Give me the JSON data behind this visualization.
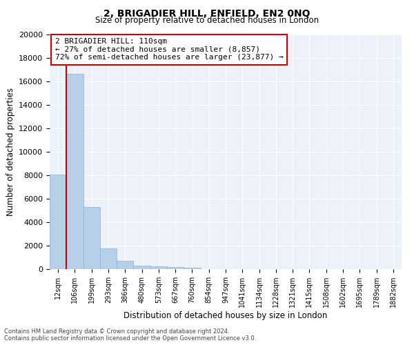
{
  "title_line1": "2, BRIGADIER HILL, ENFIELD, EN2 0NQ",
  "title_line2": "Size of property relative to detached houses in London",
  "xlabel": "Distribution of detached houses by size in London",
  "ylabel": "Number of detached properties",
  "categories": [
    "12sqm",
    "106sqm",
    "199sqm",
    "293sqm",
    "386sqm",
    "480sqm",
    "573sqm",
    "667sqm",
    "760sqm",
    "854sqm",
    "947sqm",
    "1041sqm",
    "1134sqm",
    "1228sqm",
    "1321sqm",
    "1415sqm",
    "1508sqm",
    "1602sqm",
    "1695sqm",
    "1789sqm",
    "1882sqm"
  ],
  "values": [
    8050,
    16650,
    5300,
    1750,
    700,
    320,
    210,
    165,
    145,
    0,
    0,
    0,
    0,
    0,
    0,
    0,
    0,
    0,
    0,
    0,
    0
  ],
  "bar_color": "#b8cfe8",
  "bar_edge_color": "#8aafe0",
  "vline_color": "#cc0000",
  "annotation_box_text": "2 BRIGADIER HILL: 110sqm\n← 27% of detached houses are smaller (8,857)\n72% of semi-detached houses are larger (23,877) →",
  "annotation_box_edgecolor": "#cc0000",
  "annotation_box_facecolor": "white",
  "ylim": [
    0,
    20000
  ],
  "yticks": [
    0,
    2000,
    4000,
    6000,
    8000,
    10000,
    12000,
    14000,
    16000,
    18000,
    20000
  ],
  "background_color": "#edf1f9",
  "grid_color": "white",
  "footnote": "Contains HM Land Registry data © Crown copyright and database right 2024.\nContains public sector information licensed under the Open Government Licence v3.0."
}
